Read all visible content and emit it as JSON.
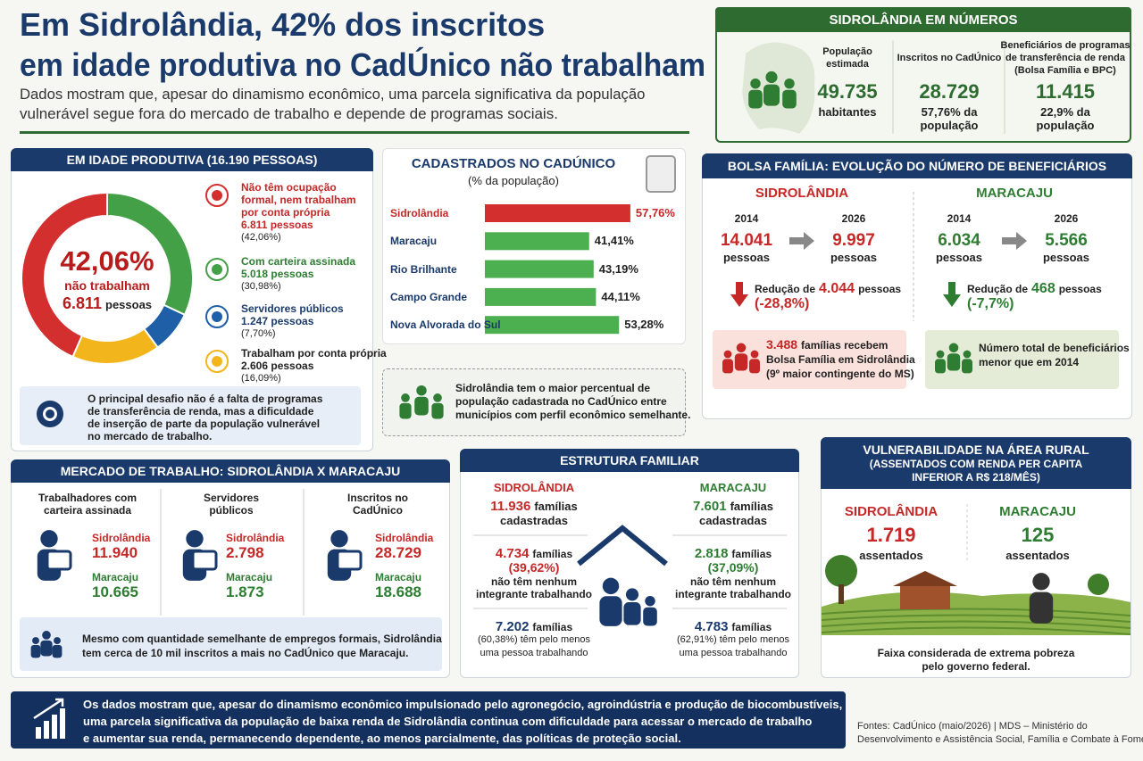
{
  "header": {
    "title": [
      "Em Sidrolândia, 42% dos inscritos",
      "em idade produtiva no CadÚnico não trabalham"
    ],
    "subtitle": [
      "Dados mostram que, apesar do dinamismo econômico, uma parcela significativa da população",
      "vulnerável segue fora do mercado de trabalho e depende de programas sociais."
    ]
  },
  "numbers": {
    "title": "SIDROLÂNDIA EM NÚMEROS",
    "items": [
      {
        "label": [
          "População",
          "estimada"
        ],
        "value": "49.735",
        "unit": [
          "habitantes"
        ]
      },
      {
        "label": [
          "Inscritos no CadÚnico"
        ],
        "value": "28.729",
        "unit": [
          "57,76% da",
          "população"
        ]
      },
      {
        "label": [
          "Beneficiários de programas",
          "de transferência de renda",
          "(Bolsa Família e BPC)"
        ],
        "value": "11.415",
        "unit": [
          "22,9% da",
          "população"
        ]
      }
    ]
  },
  "chart_data": [
    {
      "type": "donut",
      "title": "EM IDADE PRODUTIVA (16.190 PESSOAS)",
      "center": {
        "value": "42,06%",
        "label": "não trabalham",
        "count": "6.811",
        "unit": "pessoas"
      },
      "items": [
        {
          "name": [
            "Não têm ocupação",
            "formal, nem trabalham",
            "por conta própria"
          ],
          "count": "6.811 pessoas"
        },
        {
          "name": [
            "Com carteira assinada"
          ],
          "count": "5.018 pessoas"
        },
        {
          "name": [
            "Servidores públicos"
          ],
          "count": "1.247 pessoas"
        },
        {
          "name": [
            "Trabalham por conta própria"
          ],
          "count": "2.606 pessoas"
        }
      ],
      "values": [
        42.06,
        30.98,
        7.7,
        16.09
      ],
      "value_labels": [
        "(42,06%)",
        "(30,98%)",
        "(7,70%)",
        "(16,09%)"
      ],
      "colors": [
        "#d32f2f",
        "#43a047",
        "#1e5fa8",
        "#f2b51c"
      ],
      "label_colors": [
        "#c62828",
        "#2e7d32",
        "#1a3a6b",
        "#222222"
      ],
      "note": [
        "O principal desafio não é a falta de programas",
        "de transferência de renda, mas a dificuldade",
        "de inserção de parte da população vulnerável",
        "no mercado de trabalho."
      ]
    },
    {
      "type": "bar",
      "title": "CADASTRADOS NO CADÚNICO",
      "subtitle": "(% da população)",
      "categories": [
        "Sidrolândia",
        "Maracaju",
        "Rio Brilhante",
        "Campo Grande",
        "Nova Alvorada do Sul"
      ],
      "values": [
        57.76,
        41.41,
        43.19,
        44.11,
        53.28
      ],
      "value_labels": [
        "57,76%",
        "41,41%",
        "43,19%",
        "44,11%",
        "53,28%"
      ],
      "colors": [
        "#d32f2f",
        "#4caf50",
        "#4caf50",
        "#4caf50",
        "#4caf50"
      ],
      "note": [
        "Sidrolândia tem o maior percentual de",
        "população cadastrada no CadÚnico entre",
        "municípios com perfil econômico semelhante."
      ]
    }
  ],
  "bolsa": {
    "title": "BOLSA FAMÍLIA: EVOLUÇÃO DO NÚMERO DE BENEFICIÁRIOS",
    "cities": [
      {
        "name": "SIDROLÂNDIA",
        "color": "#c62828",
        "box_color": "#fbe1dc",
        "years": [
          "2014",
          "2026"
        ],
        "values": [
          "14.041",
          "9.997"
        ],
        "unit": "pessoas",
        "change": {
          "prefix": "Redução de",
          "amount": "4.044",
          "suffix": "pessoas",
          "pct": "(-28,8%)"
        },
        "box": {
          "highlight": "3.488",
          "lines": [
            "famílias recebem",
            "Bolsa Família em Sidrolândia",
            "(9º maior contingente do MS)"
          ]
        }
      },
      {
        "name": "MARACAJU",
        "color": "#2e7d32",
        "box_color": "#e4ebd6",
        "years": [
          "2014",
          "2026"
        ],
        "values": [
          "6.034",
          "5.566"
        ],
        "unit": "pessoas",
        "change": {
          "prefix": "Redução de",
          "amount": "468",
          "suffix": "pessoas",
          "pct": "(-7,7%)"
        },
        "box": {
          "lines": [
            "Número total de beneficiários",
            "menor que em 2014"
          ]
        }
      }
    ]
  },
  "mercado": {
    "title": "MERCADO DE TRABALHO: SIDROLÂNDIA X MARACAJU",
    "colors": [
      "#c62828",
      "#2e7d32"
    ],
    "columns": [
      {
        "label": [
          "Trabalhadores com",
          "carteira assinada"
        ],
        "rows": [
          {
            "city": "Sidrolândia",
            "value": "11.940"
          },
          {
            "city": "Maracaju",
            "value": "10.665"
          }
        ]
      },
      {
        "label": [
          "Servidores",
          "públicos"
        ],
        "rows": [
          {
            "city": "Sidrolândia",
            "value": "2.798"
          },
          {
            "city": "Maracaju",
            "value": "1.873"
          }
        ]
      },
      {
        "label": [
          "Inscritos no",
          "CadÚnico"
        ],
        "rows": [
          {
            "city": "Sidrolândia",
            "value": "28.729"
          },
          {
            "city": "Maracaju",
            "value": "18.688"
          }
        ]
      }
    ],
    "note": [
      "Mesmo com quantidade semelhante de empregos formais, Sidrolândia",
      "tem cerca de 10 mil inscritos a mais no CadÚnico que Maracaju."
    ]
  },
  "estrutura": {
    "title": "ESTRUTURA FAMILIAR",
    "cities": [
      {
        "name": "SIDROLÂNDIA",
        "color": "#c62828",
        "registered": {
          "value": "11.936",
          "unit": "famílias",
          "label": "cadastradas"
        },
        "none": {
          "value": "4.734",
          "unit": "famílias",
          "pct": "(39,62%)",
          "lines": [
            "não têm nenhum",
            "integrante trabalhando"
          ]
        },
        "some": {
          "value": "7.202",
          "unit": "famílias",
          "lines": [
            "(60,38%) têm pelo menos",
            "uma pessoa trabalhando"
          ]
        }
      },
      {
        "name": "MARACAJU",
        "color": "#2e7d32",
        "registered": {
          "value": "7.601",
          "unit": "famílias",
          "label": "cadastradas"
        },
        "none": {
          "value": "2.818",
          "unit": "famílias",
          "pct": "(37,09%)",
          "lines": [
            "não têm nenhum",
            "integrante trabalhando"
          ]
        },
        "some": {
          "value": "4.783",
          "unit": "famílias",
          "lines": [
            "(62,91%) têm pelo menos",
            "uma pessoa trabalhando"
          ]
        }
      }
    ]
  },
  "rural": {
    "title": [
      "VULNERABILIDADE NA ÁREA RURAL",
      "(ASSENTADOS COM RENDA PER CAPITA",
      "INFERIOR A R$ 218/MÊS)"
    ],
    "cities": [
      {
        "name": "SIDROLÂNDIA",
        "color": "#c62828",
        "value": "1.719",
        "unit": "assentados"
      },
      {
        "name": "MARACAJU",
        "color": "#2e7d32",
        "value": "125",
        "unit": "assentados"
      }
    ],
    "note": [
      "Faixa considerada de extrema pobreza",
      "pelo governo federal."
    ]
  },
  "footer": {
    "text": [
      "Os dados mostram que, apesar do dinamismo econômico impulsionado pelo agronegócio, agroindústria e produção de biocombustíveis,",
      "uma parcela significativa da população de baixa renda de Sidrolândia continua com dificuldade para acessar o mercado de trabalho",
      "e aumentar sua renda, permanecendo dependente, ao menos parcialmente, das políticas de proteção social."
    ],
    "sources": [
      "Fontes: CadÚnico (maio/2026) | MDS – Ministério do",
      "Desenvolvimento e Assistência Social, Família e Combate à Fome"
    ]
  }
}
